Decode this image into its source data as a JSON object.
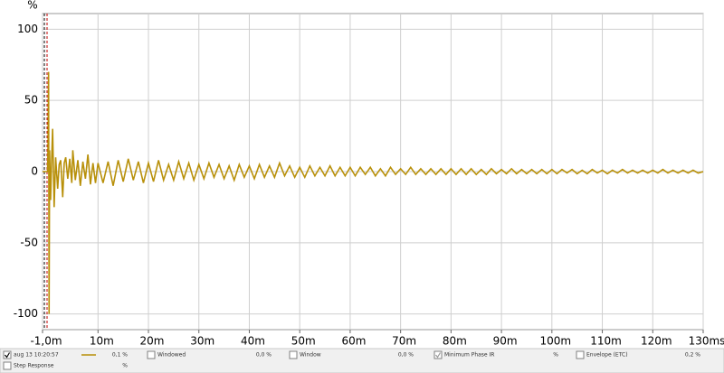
{
  "chart_data": {
    "type": "line",
    "ylabel": "%",
    "xlim": [
      -1,
      130
    ],
    "ylim": [
      -111,
      111
    ],
    "xticks": [
      {
        "value": -1,
        "label": "-1,0m"
      },
      {
        "value": 10,
        "label": "10m"
      },
      {
        "value": 20,
        "label": "20m"
      },
      {
        "value": 30,
        "label": "30m"
      },
      {
        "value": 40,
        "label": "40m"
      },
      {
        "value": 50,
        "label": "50m"
      },
      {
        "value": 60,
        "label": "60m"
      },
      {
        "value": 70,
        "label": "70m"
      },
      {
        "value": 80,
        "label": "80m"
      },
      {
        "value": 90,
        "label": "90m"
      },
      {
        "value": 100,
        "label": "100m"
      },
      {
        "value": 110,
        "label": "110m"
      },
      {
        "value": 120,
        "label": "120m"
      },
      {
        "value": 130,
        "label": "130ms"
      }
    ],
    "yticks": [
      -100,
      -50,
      0,
      50,
      100
    ],
    "grid": true,
    "series": [
      {
        "name": "aug 13 10:20:57",
        "color": "#b8900a",
        "x": [
          -1,
          0,
          0.1,
          0.2,
          0.3,
          0.4,
          0.6,
          0.8,
          1.0,
          1.3,
          1.6,
          2,
          2.3,
          2.6,
          3,
          3.3,
          3.6,
          4,
          4.4,
          4.8,
          5,
          5.5,
          6,
          6.5,
          7,
          7.5,
          8,
          8.5,
          9,
          9.5,
          10,
          11,
          12,
          13,
          14,
          15,
          16,
          17,
          18,
          19,
          20,
          21,
          22,
          23,
          24,
          25,
          26,
          27,
          28,
          29,
          30,
          31,
          32,
          33,
          34,
          35,
          36,
          37,
          38,
          39,
          40,
          41,
          42,
          43,
          44,
          45,
          46,
          47,
          48,
          49,
          50,
          51,
          52,
          53,
          54,
          55,
          56,
          57,
          58,
          59,
          60,
          61,
          62,
          63,
          64,
          65,
          66,
          67,
          68,
          69,
          70,
          71,
          72,
          73,
          74,
          75,
          76,
          77,
          78,
          79,
          80,
          81,
          82,
          83,
          84,
          85,
          86,
          87,
          88,
          89,
          90,
          91,
          92,
          93,
          94,
          95,
          96,
          97,
          98,
          99,
          100,
          101,
          102,
          103,
          104,
          105,
          106,
          107,
          108,
          109,
          110,
          111,
          112,
          113,
          114,
          115,
          116,
          117,
          118,
          119,
          120,
          121,
          122,
          123,
          124,
          125,
          126,
          127,
          128,
          129,
          130
        ],
        "values": [
          0,
          0,
          20,
          70,
          -100,
          15,
          -20,
          8,
          30,
          -25,
          10,
          -12,
          5,
          8,
          -18,
          6,
          10,
          -5,
          9,
          -8,
          15,
          -6,
          8,
          -10,
          7,
          -5,
          12,
          -9,
          6,
          -8,
          6,
          -8,
          7,
          -10,
          8,
          -7,
          9,
          -6,
          7,
          -8,
          6,
          -7,
          8,
          -6,
          5,
          -6,
          7,
          -5,
          6,
          -6,
          5,
          -5,
          6,
          -4,
          5,
          -5,
          4,
          -6,
          5,
          -4,
          4,
          -5,
          5,
          -4,
          4,
          -4,
          6,
          -3,
          4,
          -4,
          3,
          -4,
          4,
          -3,
          3,
          -3,
          4,
          -3,
          3,
          -3,
          3,
          -3,
          3,
          -2,
          3,
          -3,
          2,
          -3,
          3,
          -2,
          2,
          -2,
          3,
          -2,
          2,
          -2,
          2,
          -2,
          2,
          -2,
          2,
          -2,
          2,
          -2,
          2,
          -2,
          1.5,
          -2,
          2,
          -1.5,
          1.5,
          -1.5,
          2,
          -1.5,
          1.5,
          -1.5,
          1.5,
          -1.5,
          1.5,
          -1.5,
          1.5,
          -1.5,
          1.5,
          -1,
          1.5,
          -1.5,
          1,
          -1.5,
          1.5,
          -1,
          1,
          -1.5,
          1,
          -1,
          1.5,
          -1,
          1,
          -1,
          1,
          -1,
          1,
          -1,
          1.5,
          -1,
          1,
          -1,
          1,
          -1,
          1,
          -1,
          0
        ]
      }
    ]
  },
  "legend_panel": {
    "rows": [
      [
        {
          "label": "aug 13 10:20:57",
          "value": "0,1 %"
        },
        {
          "label": "Windowed",
          "value": "0,0 %"
        },
        {
          "label": "Window",
          "value": "0,0 %"
        },
        {
          "label": "Minimum Phase IR",
          "value": "%"
        },
        {
          "label": "Envelope (ETC)",
          "value": "0,2 %"
        }
      ],
      [
        {
          "label": "Step Response",
          "value": "%"
        }
      ]
    ]
  }
}
